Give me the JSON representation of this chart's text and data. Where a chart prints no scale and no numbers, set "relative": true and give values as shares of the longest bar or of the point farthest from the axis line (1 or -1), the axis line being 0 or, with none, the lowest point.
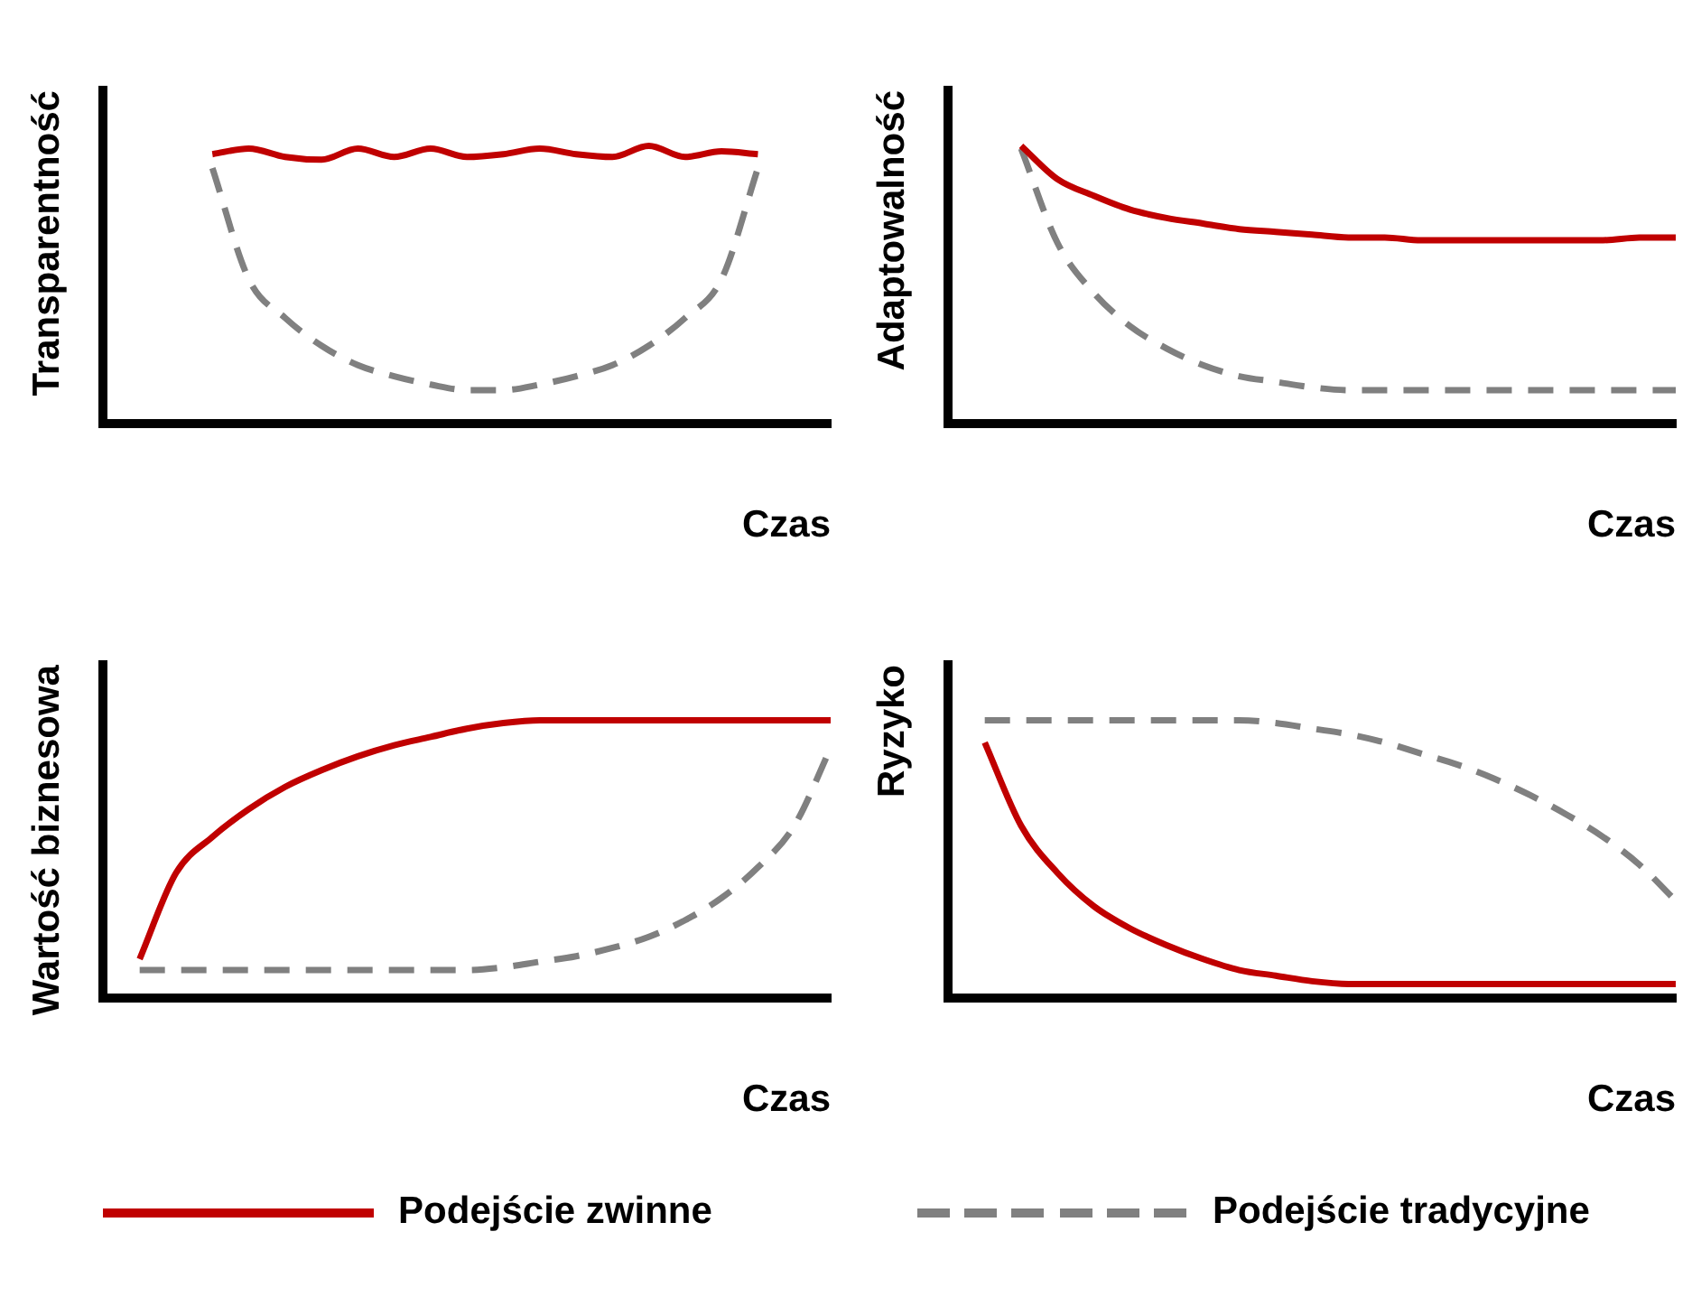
{
  "chart_data": [
    {
      "type": "line",
      "relative": true,
      "ylabel": "Transparentność",
      "xlabel": "Czas",
      "grid": false,
      "marker": "none",
      "legend": false,
      "categories": [
        null,
        null,
        null,
        null,
        null,
        null,
        null,
        null,
        null,
        null,
        null,
        null,
        null,
        null,
        null,
        null,
        null,
        null,
        null,
        null,
        null
      ],
      "series": [
        {
          "color": "#c00000",
          "line_style": "solid",
          "values": [
            null,
            null,
            null,
            0.97,
            0.99,
            0.96,
            0.95,
            0.99,
            0.96,
            0.99,
            0.96,
            0.97,
            0.99,
            0.97,
            0.96,
            1.0,
            0.96,
            0.98,
            0.97,
            null,
            null
          ]
        },
        {
          "color": "#808080",
          "line_style": "dashed",
          "values": [
            null,
            null,
            null,
            0.92,
            0.52,
            0.38,
            0.28,
            0.21,
            0.17,
            0.14,
            0.12,
            0.12,
            0.14,
            0.17,
            0.21,
            0.28,
            0.38,
            0.52,
            0.92,
            null,
            null
          ]
        }
      ]
    },
    {
      "type": "line",
      "relative": true,
      "ylabel": "Adaptowalność",
      "xlabel": "Czas",
      "grid": false,
      "marker": "none",
      "legend": false,
      "categories": [
        null,
        null,
        null,
        null,
        null,
        null,
        null,
        null,
        null,
        null,
        null,
        null,
        null,
        null,
        null,
        null,
        null,
        null,
        null,
        null,
        null
      ],
      "series": [
        {
          "color": "#c00000",
          "line_style": "solid",
          "values": [
            null,
            null,
            1.0,
            0.88,
            0.82,
            0.77,
            0.74,
            0.72,
            0.7,
            0.69,
            0.68,
            0.67,
            0.67,
            0.66,
            0.66,
            0.66,
            0.66,
            0.66,
            0.66,
            0.67,
            0.67
          ]
        },
        {
          "color": "#808080",
          "line_style": "dashed",
          "values": [
            null,
            null,
            0.99,
            0.65,
            0.47,
            0.35,
            0.27,
            0.21,
            0.17,
            0.15,
            0.13,
            0.12,
            0.12,
            0.12,
            0.12,
            0.12,
            0.12,
            0.12,
            0.12,
            0.12,
            0.12
          ]
        }
      ]
    },
    {
      "type": "line",
      "relative": true,
      "ylabel": "Wartość biznesowa",
      "xlabel": "Czas",
      "grid": false,
      "marker": "none",
      "legend": false,
      "categories": [
        null,
        null,
        null,
        null,
        null,
        null,
        null,
        null,
        null,
        null,
        null,
        null,
        null,
        null,
        null,
        null,
        null,
        null,
        null,
        null,
        null
      ],
      "series": [
        {
          "color": "#c00000",
          "line_style": "solid",
          "values": [
            null,
            0.14,
            0.45,
            0.58,
            0.68,
            0.76,
            0.82,
            0.87,
            0.91,
            0.94,
            0.97,
            0.99,
            1.0,
            1.0,
            1.0,
            1.0,
            1.0,
            1.0,
            1.0,
            1.0,
            1.0
          ]
        },
        {
          "color": "#808080",
          "line_style": "dashed",
          "values": [
            null,
            0.1,
            0.1,
            0.1,
            0.1,
            0.1,
            0.1,
            0.1,
            0.1,
            0.1,
            0.1,
            0.11,
            0.13,
            0.15,
            0.18,
            0.22,
            0.28,
            0.36,
            0.47,
            0.62,
            0.9
          ]
        }
      ]
    },
    {
      "type": "line",
      "relative": true,
      "ylabel": "Ryzyko",
      "xlabel": "Czas",
      "grid": false,
      "marker": "none",
      "legend": "bottom",
      "categories": [
        null,
        null,
        null,
        null,
        null,
        null,
        null,
        null,
        null,
        null,
        null,
        null,
        null,
        null,
        null,
        null,
        null,
        null,
        null,
        null,
        null
      ],
      "series": [
        {
          "name": "Podejście zwinne",
          "color": "#c00000",
          "line_style": "solid",
          "values": [
            null,
            0.92,
            0.62,
            0.45,
            0.33,
            0.25,
            0.19,
            0.14,
            0.1,
            0.08,
            0.06,
            0.05,
            0.05,
            0.05,
            0.05,
            0.05,
            0.05,
            0.05,
            0.05,
            0.05,
            0.05
          ]
        },
        {
          "name": "Podejście tradycyjne",
          "color": "#808080",
          "line_style": "dashed",
          "values": [
            null,
            1.0,
            1.0,
            1.0,
            1.0,
            1.0,
            1.0,
            1.0,
            1.0,
            0.99,
            0.97,
            0.95,
            0.92,
            0.88,
            0.84,
            0.79,
            0.73,
            0.66,
            0.58,
            0.48,
            0.35
          ]
        }
      ]
    }
  ]
}
